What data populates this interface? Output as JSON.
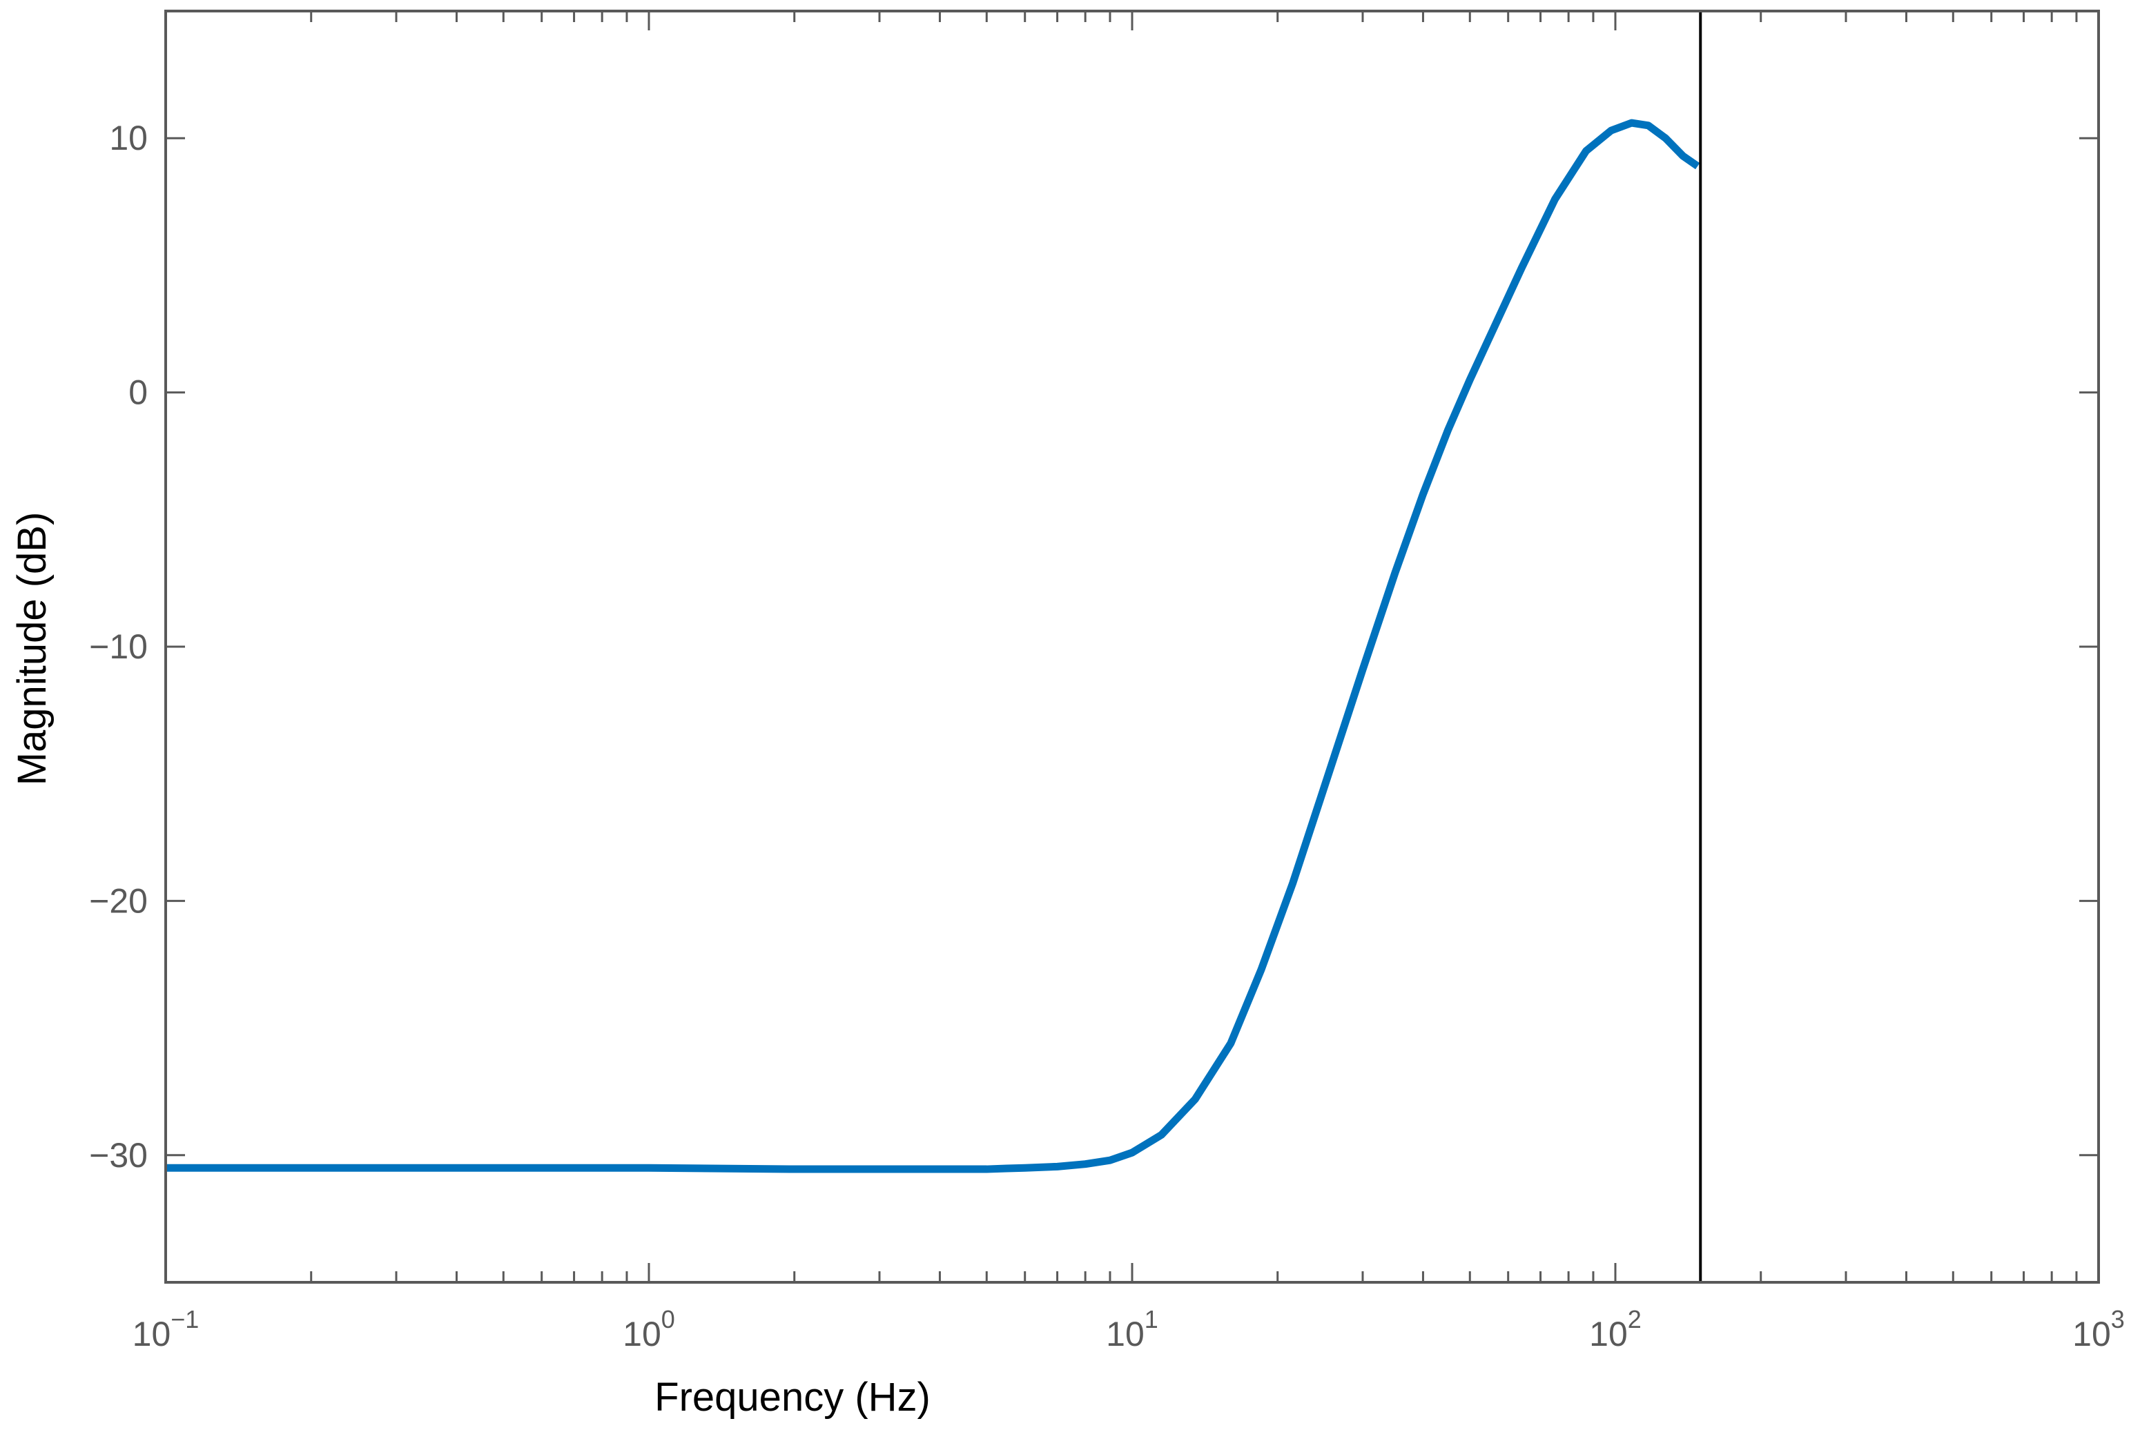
{
  "chart_data": {
    "type": "line",
    "title": "",
    "xlabel": "Frequency  (Hz)",
    "ylabel": "Magnitude (dB)",
    "xscale": "log",
    "xlim": [
      0.1,
      1000
    ],
    "ylim": [
      -35,
      15
    ],
    "grid": false,
    "x_ticks": [
      {
        "base": "10",
        "exp": "−1",
        "value": 0.1
      },
      {
        "base": "10",
        "exp": "0",
        "value": 1
      },
      {
        "base": "10",
        "exp": "1",
        "value": 10
      },
      {
        "base": "10",
        "exp": "2",
        "value": 100
      },
      {
        "base": "10",
        "exp": "3",
        "value": 1000
      }
    ],
    "y_ticks": [
      {
        "label": "10",
        "value": 10
      },
      {
        "label": "0",
        "value": 0
      },
      {
        "label": "−10",
        "value": -10
      },
      {
        "label": "−20",
        "value": -20
      },
      {
        "label": "−30",
        "value": -30
      }
    ],
    "series": [
      {
        "color": "#0072BD",
        "x": [
          0.1,
          0.3,
          1,
          2,
          3,
          4,
          5,
          5.5,
          6,
          7,
          8,
          9,
          10,
          11.5,
          13.5,
          16,
          18.5,
          21.5,
          25,
          30,
          35,
          40,
          45,
          50,
          55,
          64,
          75,
          87,
          98,
          108,
          117,
          127,
          138,
          148
        ],
        "y": [
          -30.5,
          -30.5,
          -30.5,
          -30.55,
          -30.55,
          -30.55,
          -30.55,
          -30.52,
          -30.5,
          -30.45,
          -30.35,
          -30.2,
          -29.9,
          -29.2,
          -27.8,
          -25.6,
          -22.7,
          -19.3,
          -15.5,
          -10.9,
          -7.1,
          -4.0,
          -1.5,
          0.5,
          2.2,
          4.9,
          7.6,
          9.5,
          10.3,
          10.6,
          10.5,
          10.0,
          9.3,
          8.9
        ]
      }
    ],
    "vertical_line": {
      "x": 150,
      "color": "#000000"
    },
    "colors": {
      "axes": "#595959",
      "line": "#0072BD",
      "marker_line": "#000000"
    }
  }
}
